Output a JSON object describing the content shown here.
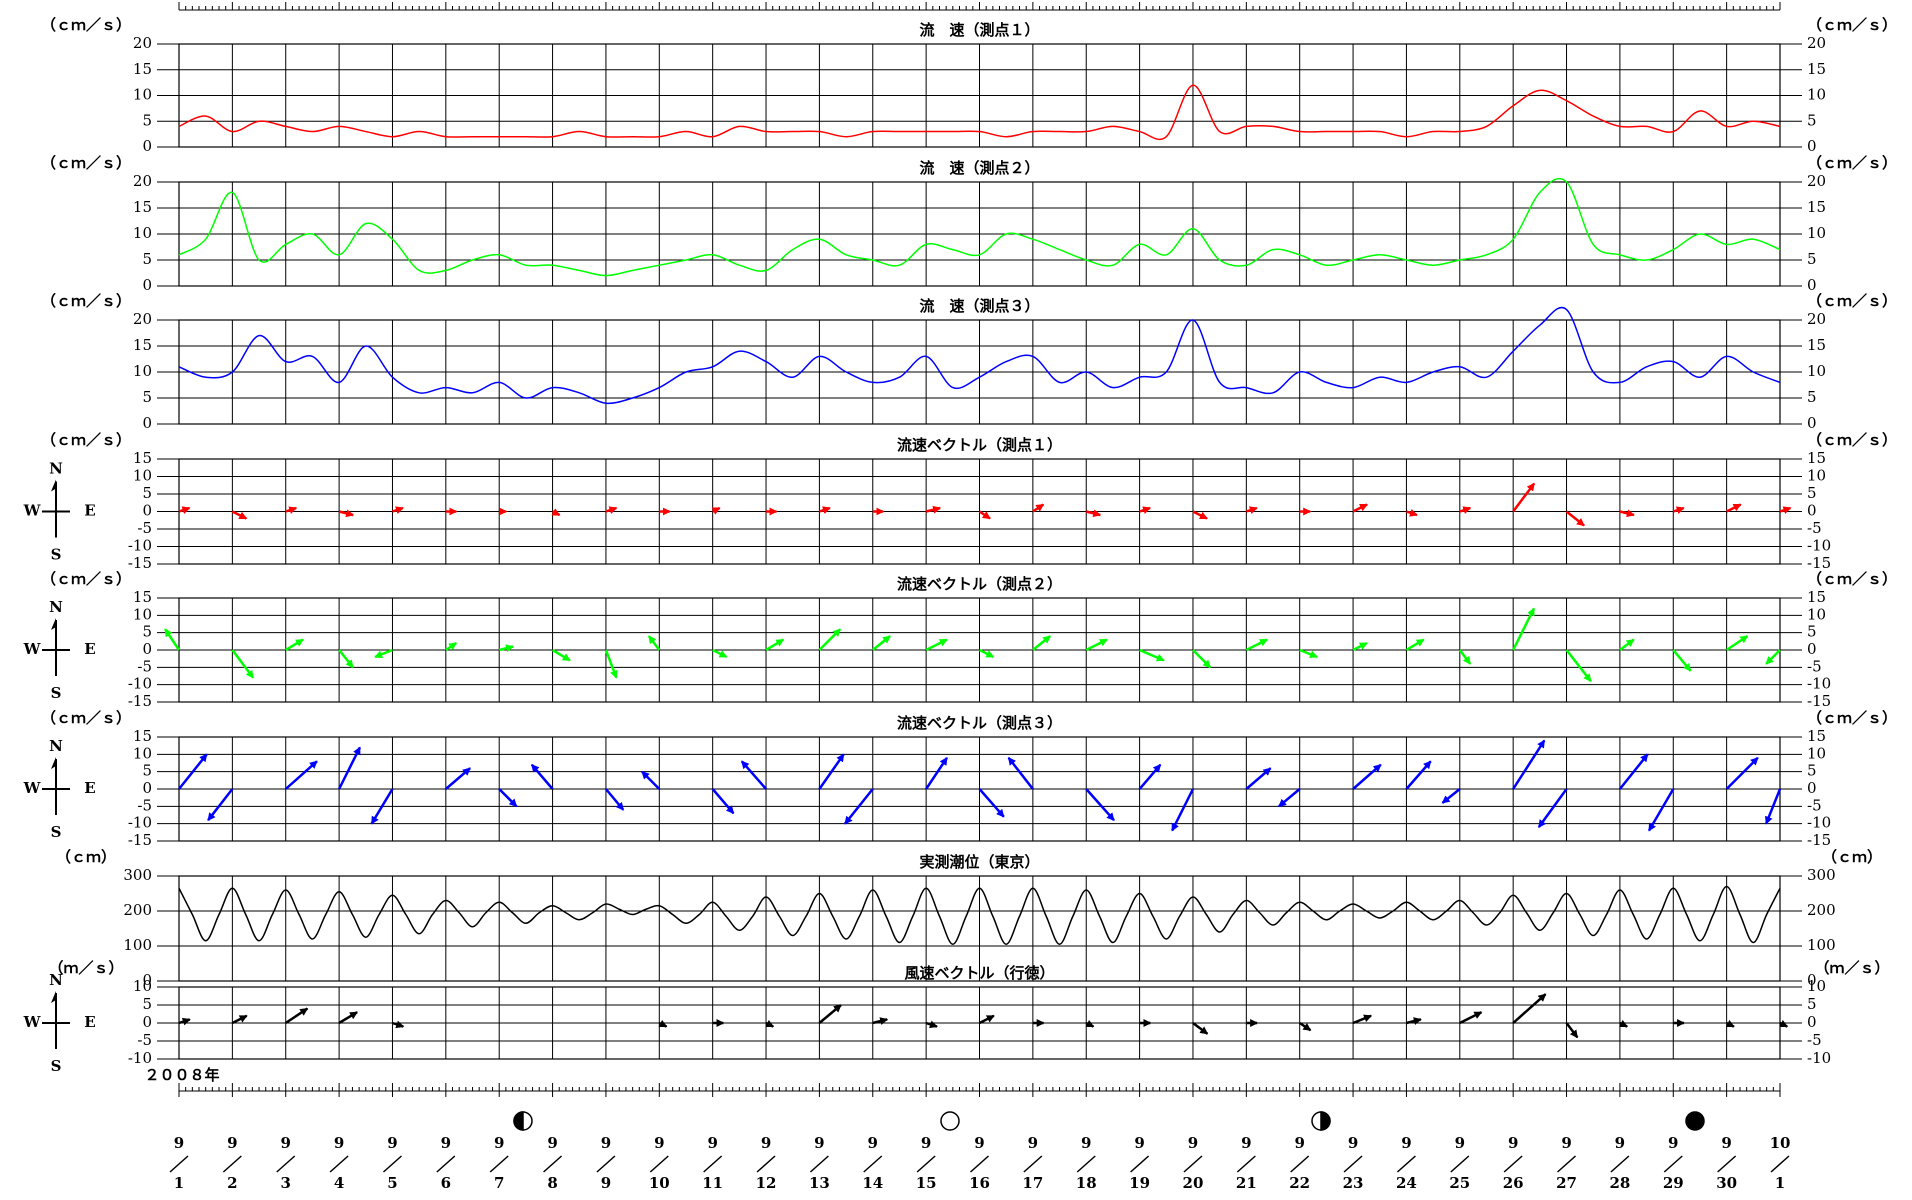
{
  "chart_data": [
    {
      "type": "line",
      "title": "流　速（測点１）",
      "y_unit": "（ｃｍ／ｓ）",
      "color": "#ff0000",
      "x": [
        1,
        1.5,
        2,
        2.5,
        3,
        3.5,
        4,
        4.5,
        5,
        5.5,
        6,
        6.5,
        7,
        7.5,
        8,
        8.5,
        9,
        9.5,
        10,
        10.5,
        11,
        11.5,
        12,
        12.5,
        13,
        13.5,
        14,
        14.5,
        15,
        15.5,
        16,
        16.5,
        17,
        17.5,
        18,
        18.5,
        19,
        19.5,
        20,
        20.5,
        21,
        21.5,
        22,
        22.5,
        23,
        23.5,
        24,
        24.5,
        25,
        25.5,
        26,
        26.5,
        27,
        27.5,
        28,
        28.5,
        29,
        29.5,
        30,
        30.5,
        31
      ],
      "values": [
        4,
        6,
        3,
        5,
        4,
        3,
        4,
        3,
        2,
        3,
        2,
        2,
        2,
        2,
        2,
        3,
        2,
        2,
        2,
        3,
        2,
        4,
        3,
        3,
        3,
        2,
        3,
        3,
        3,
        3,
        3,
        2,
        3,
        3,
        3,
        4,
        3,
        2,
        12,
        3,
        4,
        4,
        3,
        3,
        3,
        3,
        2,
        3,
        3,
        4,
        8,
        11,
        9,
        6,
        4,
        4,
        3,
        7,
        4,
        5,
        4
      ],
      "xlim": [
        1,
        31
      ],
      "ylim": [
        0,
        20
      ],
      "yticks": [
        0,
        5,
        10,
        15,
        20
      ]
    },
    {
      "type": "line",
      "title": "流　速（測点２）",
      "y_unit": "（ｃｍ／ｓ）",
      "color": "#00ff00",
      "x": [
        1,
        1.5,
        2,
        2.5,
        3,
        3.5,
        4,
        4.5,
        5,
        5.5,
        6,
        6.5,
        7,
        7.5,
        8,
        8.5,
        9,
        9.5,
        10,
        10.5,
        11,
        11.5,
        12,
        12.5,
        13,
        13.5,
        14,
        14.5,
        15,
        15.5,
        16,
        16.5,
        17,
        17.5,
        18,
        18.5,
        19,
        19.5,
        20,
        20.5,
        21,
        21.5,
        22,
        22.5,
        23,
        23.5,
        24,
        24.5,
        25,
        25.5,
        26,
        26.5,
        27,
        27.5,
        28,
        28.5,
        29,
        29.5,
        30,
        30.5,
        31
      ],
      "values": [
        6,
        9,
        18,
        5,
        8,
        10,
        6,
        12,
        9,
        3,
        3,
        5,
        6,
        4,
        4,
        3,
        2,
        3,
        4,
        5,
        6,
        4,
        3,
        7,
        9,
        6,
        5,
        4,
        8,
        7,
        6,
        10,
        9,
        7,
        5,
        4,
        8,
        6,
        11,
        5,
        4,
        7,
        6,
        4,
        5,
        6,
        5,
        4,
        5,
        6,
        9,
        18,
        20,
        8,
        6,
        5,
        7,
        10,
        8,
        9,
        7
      ],
      "xlim": [
        1,
        31
      ],
      "ylim": [
        0,
        20
      ],
      "yticks": [
        0,
        5,
        10,
        15,
        20
      ]
    },
    {
      "type": "line",
      "title": "流　速（測点３）",
      "y_unit": "（ｃｍ／ｓ）",
      "color": "#0000ff",
      "x": [
        1,
        1.5,
        2,
        2.5,
        3,
        3.5,
        4,
        4.5,
        5,
        5.5,
        6,
        6.5,
        7,
        7.5,
        8,
        8.5,
        9,
        9.5,
        10,
        10.5,
        11,
        11.5,
        12,
        12.5,
        13,
        13.5,
        14,
        14.5,
        15,
        15.5,
        16,
        16.5,
        17,
        17.5,
        18,
        18.5,
        19,
        19.5,
        20,
        20.5,
        21,
        21.5,
        22,
        22.5,
        23,
        23.5,
        24,
        24.5,
        25,
        25.5,
        26,
        26.5,
        27,
        27.5,
        28,
        28.5,
        29,
        29.5,
        30,
        30.5,
        31
      ],
      "values": [
        11,
        9,
        10,
        17,
        12,
        13,
        8,
        15,
        9,
        6,
        7,
        6,
        8,
        5,
        7,
        6,
        4,
        5,
        7,
        10,
        11,
        14,
        12,
        9,
        13,
        10,
        8,
        9,
        13,
        7,
        9,
        12,
        13,
        8,
        10,
        7,
        9,
        10,
        20,
        8,
        7,
        6,
        10,
        8,
        7,
        9,
        8,
        10,
        11,
        9,
        14,
        19,
        22,
        10,
        8,
        11,
        12,
        9,
        13,
        10,
        8
      ],
      "xlim": [
        1,
        31
      ],
      "ylim": [
        0,
        20
      ],
      "yticks": [
        0,
        5,
        10,
        15,
        20
      ]
    },
    {
      "type": "vector",
      "title": "流速ベクトル（測点１）",
      "y_unit": "（ｃｍ／ｓ）",
      "color": "#ff0000",
      "compass": {
        "n": "N",
        "w": "W",
        "e": "E",
        "s": "S"
      },
      "x": [
        1,
        2,
        3,
        4,
        5,
        6,
        7,
        8,
        9,
        10,
        11,
        12,
        13,
        14,
        15,
        16,
        17,
        18,
        19,
        20,
        21,
        22,
        23,
        24,
        25,
        26,
        27,
        28,
        29,
        30,
        31
      ],
      "u": [
        3,
        4,
        3,
        4,
        3,
        3,
        2,
        2,
        3,
        3,
        2,
        3,
        3,
        3,
        4,
        3,
        3,
        4,
        3,
        4,
        3,
        3,
        4,
        3,
        3,
        6,
        5,
        4,
        3,
        4,
        3
      ],
      "v": [
        1,
        -2,
        1,
        -1,
        1,
        0,
        0,
        -1,
        1,
        0,
        1,
        0,
        1,
        0,
        1,
        -2,
        2,
        -1,
        1,
        -2,
        1,
        0,
        2,
        -1,
        1,
        8,
        -4,
        -1,
        1,
        2,
        1
      ],
      "xlim": [
        1,
        31
      ],
      "ylim": [
        -15,
        15
      ],
      "yticks": [
        -15,
        -10,
        -5,
        0,
        5,
        10,
        15
      ]
    },
    {
      "type": "vector",
      "title": "流速ベクトル（測点２）",
      "y_unit": "（ｃｍ／ｓ）",
      "color": "#00ff00",
      "compass": {
        "n": "N",
        "w": "W",
        "e": "E",
        "s": "S"
      },
      "x": [
        1,
        2,
        3,
        4,
        5,
        6,
        7,
        8,
        9,
        10,
        11,
        12,
        13,
        14,
        15,
        16,
        17,
        18,
        19,
        20,
        21,
        22,
        23,
        24,
        25,
        26,
        27,
        28,
        29,
        30,
        31
      ],
      "u": [
        -4,
        6,
        5,
        4,
        -5,
        3,
        4,
        5,
        3,
        -3,
        4,
        5,
        6,
        5,
        6,
        4,
        5,
        6,
        7,
        5,
        6,
        5,
        4,
        5,
        3,
        6,
        7,
        4,
        5,
        6,
        -4
      ],
      "v": [
        6,
        -8,
        3,
        -5,
        -2,
        2,
        1,
        -3,
        -8,
        4,
        -2,
        3,
        6,
        4,
        3,
        -2,
        4,
        3,
        -3,
        -5,
        3,
        -2,
        2,
        3,
        -4,
        12,
        -9,
        3,
        -6,
        4,
        -4
      ],
      "xlim": [
        1,
        31
      ],
      "ylim": [
        -15,
        15
      ],
      "yticks": [
        -15,
        -10,
        -5,
        0,
        5,
        10,
        15
      ]
    },
    {
      "type": "vector",
      "title": "流速ベクトル（測点３）",
      "y_unit": "（ｃｍ／ｓ）",
      "color": "#0000ff",
      "compass": {
        "n": "N",
        "w": "W",
        "e": "E",
        "s": "S"
      },
      "x": [
        1,
        2,
        3,
        4,
        5,
        6,
        7,
        8,
        9,
        10,
        11,
        12,
        13,
        14,
        15,
        16,
        17,
        18,
        19,
        20,
        21,
        22,
        23,
        24,
        25,
        26,
        27,
        28,
        29,
        30,
        31
      ],
      "u": [
        8,
        -7,
        9,
        6,
        -6,
        7,
        5,
        -6,
        5,
        -5,
        6,
        -7,
        7,
        -8,
        6,
        7,
        -7,
        8,
        6,
        -6,
        7,
        -6,
        8,
        7,
        -5,
        9,
        -8,
        8,
        -7,
        9,
        -4
      ],
      "v": [
        10,
        -9,
        8,
        12,
        -10,
        6,
        -5,
        7,
        -6,
        5,
        -7,
        8,
        10,
        -10,
        9,
        -8,
        9,
        -9,
        7,
        -12,
        6,
        -5,
        7,
        8,
        -4,
        14,
        -11,
        10,
        -12,
        9,
        -10
      ],
      "xlim": [
        1,
        31
      ],
      "ylim": [
        -15,
        15
      ],
      "yticks": [
        -15,
        -10,
        -5,
        0,
        5,
        10,
        15
      ]
    },
    {
      "type": "line",
      "title": "実測潮位（東京）",
      "y_unit": "（ｃｍ）",
      "color": "#000000",
      "x": [
        1,
        1.25,
        1.5,
        1.75,
        2,
        2.25,
        2.5,
        2.75,
        3,
        3.25,
        3.5,
        3.75,
        4,
        4.25,
        4.5,
        4.75,
        5,
        5.25,
        5.5,
        5.75,
        6,
        6.25,
        6.5,
        6.75,
        7,
        7.25,
        7.5,
        7.75,
        8,
        8.25,
        8.5,
        8.75,
        9,
        9.25,
        9.5,
        9.75,
        10,
        10.25,
        10.5,
        10.75,
        11,
        11.25,
        11.5,
        11.75,
        12,
        12.25,
        12.5,
        12.75,
        13,
        13.25,
        13.5,
        13.75,
        14,
        14.25,
        14.5,
        14.75,
        15,
        15.25,
        15.5,
        15.75,
        16,
        16.25,
        16.5,
        16.75,
        17,
        17.25,
        17.5,
        17.75,
        18,
        18.25,
        18.5,
        18.75,
        19,
        19.25,
        19.5,
        19.75,
        20,
        20.25,
        20.5,
        20.75,
        21,
        21.25,
        21.5,
        21.75,
        22,
        22.25,
        22.5,
        22.75,
        23,
        23.25,
        23.5,
        23.75,
        24,
        24.25,
        24.5,
        24.75,
        25,
        25.25,
        25.5,
        25.75,
        26,
        26.25,
        26.5,
        26.75,
        27,
        27.25,
        27.5,
        27.75,
        28,
        28.25,
        28.5,
        28.75,
        29,
        29.25,
        29.5,
        29.75,
        30,
        30.25,
        30.5,
        30.75,
        31
      ],
      "values": [
        265,
        190,
        115,
        190,
        265,
        190,
        115,
        190,
        260,
        190,
        120,
        190,
        255,
        190,
        125,
        190,
        245,
        190,
        135,
        190,
        230,
        195,
        155,
        195,
        225,
        195,
        165,
        195,
        215,
        195,
        175,
        195,
        220,
        205,
        190,
        205,
        215,
        190,
        165,
        190,
        225,
        185,
        145,
        185,
        240,
        185,
        130,
        185,
        250,
        185,
        120,
        185,
        260,
        185,
        110,
        185,
        265,
        185,
        105,
        185,
        265,
        185,
        105,
        185,
        265,
        185,
        105,
        185,
        260,
        185,
        110,
        185,
        250,
        185,
        120,
        185,
        240,
        190,
        140,
        190,
        230,
        195,
        160,
        195,
        225,
        200,
        175,
        200,
        220,
        200,
        180,
        200,
        225,
        200,
        175,
        200,
        230,
        195,
        160,
        195,
        245,
        195,
        145,
        195,
        250,
        190,
        130,
        190,
        260,
        190,
        120,
        190,
        265,
        190,
        115,
        190,
        270,
        190,
        110,
        190,
        265
      ],
      "xlim": [
        1,
        31
      ],
      "ylim": [
        0,
        300
      ],
      "yticks": [
        0,
        100,
        200,
        300
      ]
    },
    {
      "type": "vector",
      "title": "風速ベクトル（行徳）",
      "y_unit": "（ｍ／ｓ）",
      "color": "#000000",
      "compass": {
        "n": "N",
        "w": "W",
        "e": "E",
        "s": "S"
      },
      "x": [
        1,
        2,
        3,
        4,
        5,
        6,
        7,
        8,
        9,
        10,
        11,
        12,
        13,
        14,
        15,
        16,
        17,
        18,
        19,
        20,
        21,
        22,
        23,
        24,
        25,
        26,
        27,
        28,
        29,
        30,
        31
      ],
      "u": [
        3,
        4,
        6,
        5,
        3,
        null,
        null,
        null,
        null,
        2,
        3,
        2,
        6,
        4,
        3,
        4,
        3,
        2,
        3,
        4,
        3,
        3,
        5,
        4,
        6,
        9,
        3,
        2,
        3,
        2,
        2
      ],
      "v": [
        1,
        2,
        4,
        3,
        -1,
        null,
        null,
        null,
        null,
        -1,
        0,
        -1,
        5,
        1,
        -1,
        2,
        0,
        -1,
        0,
        -3,
        0,
        -2,
        2,
        1,
        3,
        8,
        -4,
        -1,
        0,
        -1,
        -1
      ],
      "xlim": [
        1,
        31
      ],
      "ylim": [
        -10,
        10
      ],
      "yticks": [
        -10,
        -5,
        0,
        5,
        10
      ]
    }
  ],
  "date_axis": {
    "year_label": "２００８年",
    "months": [
      "9",
      "9",
      "9",
      "9",
      "9",
      "9",
      "9",
      "9",
      "9",
      "9",
      "9",
      "9",
      "9",
      "9",
      "9",
      "9",
      "9",
      "9",
      "9",
      "9",
      "9",
      "9",
      "9",
      "9",
      "9",
      "9",
      "9",
      "9",
      "9",
      "9",
      "10"
    ],
    "days": [
      "1",
      "2",
      "3",
      "4",
      "5",
      "6",
      "7",
      "8",
      "9",
      "10",
      "11",
      "12",
      "13",
      "14",
      "15",
      "16",
      "17",
      "18",
      "19",
      "20",
      "21",
      "22",
      "23",
      "24",
      "25",
      "26",
      "27",
      "28",
      "29",
      "30",
      "1"
    ]
  }
}
